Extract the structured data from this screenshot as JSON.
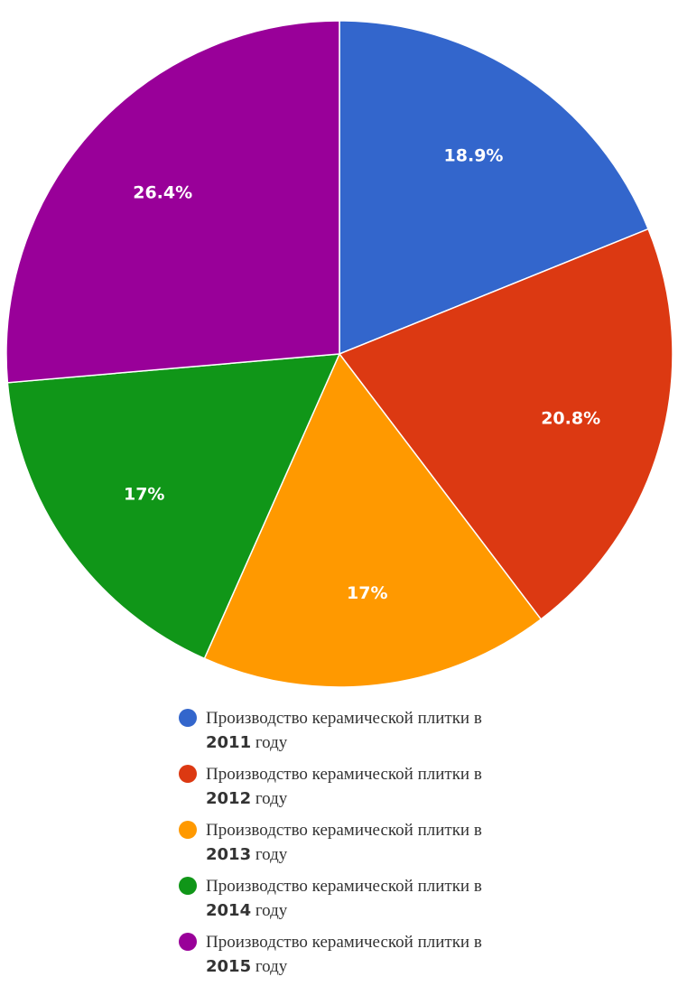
{
  "chart_data": {
    "type": "pie",
    "title": "",
    "slices": [
      {
        "name": "Производство керамической плитки в 2011 году",
        "legend_text": "Производство керамической плитки в",
        "legend_year": "2011",
        "legend_suffix": "году",
        "value": 18.9,
        "label": "18.9%",
        "color": "#3366cc"
      },
      {
        "name": "Производство керамической плитки в 2012 году",
        "legend_text": "Производство керамической плитки в",
        "legend_year": "2012",
        "legend_suffix": "году",
        "value": 20.8,
        "label": "20.8%",
        "color": "#dc3912"
      },
      {
        "name": "Производство керамической плитки в 2013 году",
        "legend_text": "Производство керамической плитки в",
        "legend_year": "2013",
        "legend_suffix": "году",
        "value": 17.0,
        "label": "17%",
        "color": "#ff9900"
      },
      {
        "name": "Производство керамической плитки в 2014 году",
        "legend_text": "Производство керамической плитки в",
        "legend_year": "2014",
        "legend_suffix": "году",
        "value": 17.0,
        "label": "17%",
        "color": "#109618"
      },
      {
        "name": "Производство керамической плитки в 2015 году",
        "legend_text": "Производство керамической плитки в",
        "legend_year": "2015",
        "legend_suffix": "году",
        "value": 26.4,
        "label": "26.4%",
        "color": "#990099"
      }
    ],
    "legend_position": "bottom"
  }
}
